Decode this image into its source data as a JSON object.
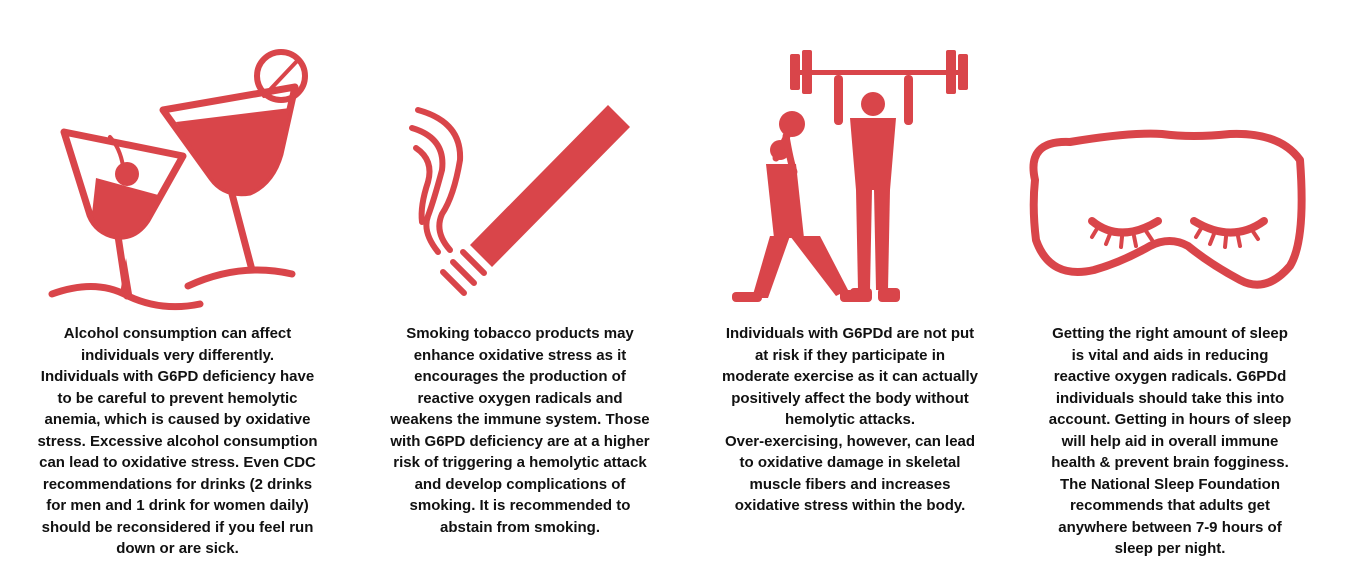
{
  "accent_color": "#d9454a",
  "panels": [
    {
      "id": "alcohol",
      "icon": "cocktail-glasses-icon",
      "lines": [
        "Alcohol consumption can affect",
        "individuals very differently.",
        "Individuals with G6PD deficiency have",
        "to be careful to prevent hemolytic",
        "anemia, which is caused by oxidative",
        "stress. Excessive alcohol consumption",
        "can lead to oxidative stress. Even CDC",
        "recommendations for drinks (2 drinks",
        "for men and 1 drink for women daily)",
        "should be reconsidered if you feel run",
        "down or are sick."
      ]
    },
    {
      "id": "smoking",
      "icon": "cigarette-icon",
      "lines": [
        "Smoking tobacco products may",
        "enhance oxidative stress as it",
        "encourages the production of",
        "reactive oxygen radicals and",
        "weakens the immune system. Those",
        "with G6PD deficiency are at a higher",
        "risk of triggering a hemolytic attack",
        "and develop complications of",
        "smoking. It is recommended to",
        "abstain from smoking."
      ]
    },
    {
      "id": "exercise",
      "icon": "weightlifting-people-icon",
      "lines": [
        "Individuals with G6PDd are not put",
        "at risk if they participate in",
        "moderate exercise as it can actually",
        "positively affect the body without",
        "hemolytic attacks.",
        "Over-exercising, however, can lead",
        "to oxidative damage in skeletal",
        "muscle fibers and increases",
        "oxidative stress within the body."
      ]
    },
    {
      "id": "sleep",
      "icon": "sleep-mask-icon",
      "lines": [
        "Getting the right amount of sleep",
        "is vital and aids in reducing",
        "reactive oxygen radicals. G6PDd",
        "individuals should take this into",
        "account. Getting in hours of sleep",
        "will help aid in overall immune",
        "health & prevent brain fogginess.",
        "The National Sleep Foundation",
        "recommends that adults get",
        "anywhere between 7-9 hours of",
        "sleep per night."
      ]
    }
  ]
}
